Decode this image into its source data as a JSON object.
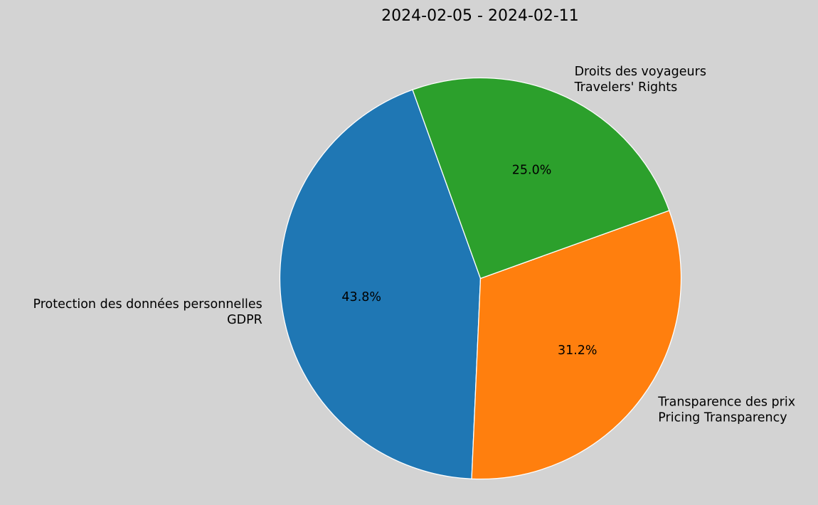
{
  "chart_data": {
    "type": "pie",
    "title": "2024-02-05 - 2024-02-11",
    "categories": [
      "Protection des données personnelles\nGDPR",
      "Transparence des prix\nPricing Transparency",
      "Droits des voyageurs\nTravelers' Rights"
    ],
    "values": [
      43.8,
      31.2,
      25.0
    ],
    "pct_labels": [
      "43.8%",
      "31.2%",
      "25.0%"
    ],
    "colors": [
      "#1f77b4",
      "#ff7f0e",
      "#2ca02c"
    ],
    "start_angle": 109.8,
    "counterclock": true,
    "label_lines": [
      [
        "Protection des données personnelles",
        "GDPR"
      ],
      [
        "Transparence des prix",
        "Pricing Transparency"
      ],
      [
        "Droits des voyageurs",
        "Travelers' Rights"
      ]
    ],
    "legend": null,
    "background": "#d3d3d3",
    "edgecolor": "#ffffff"
  }
}
